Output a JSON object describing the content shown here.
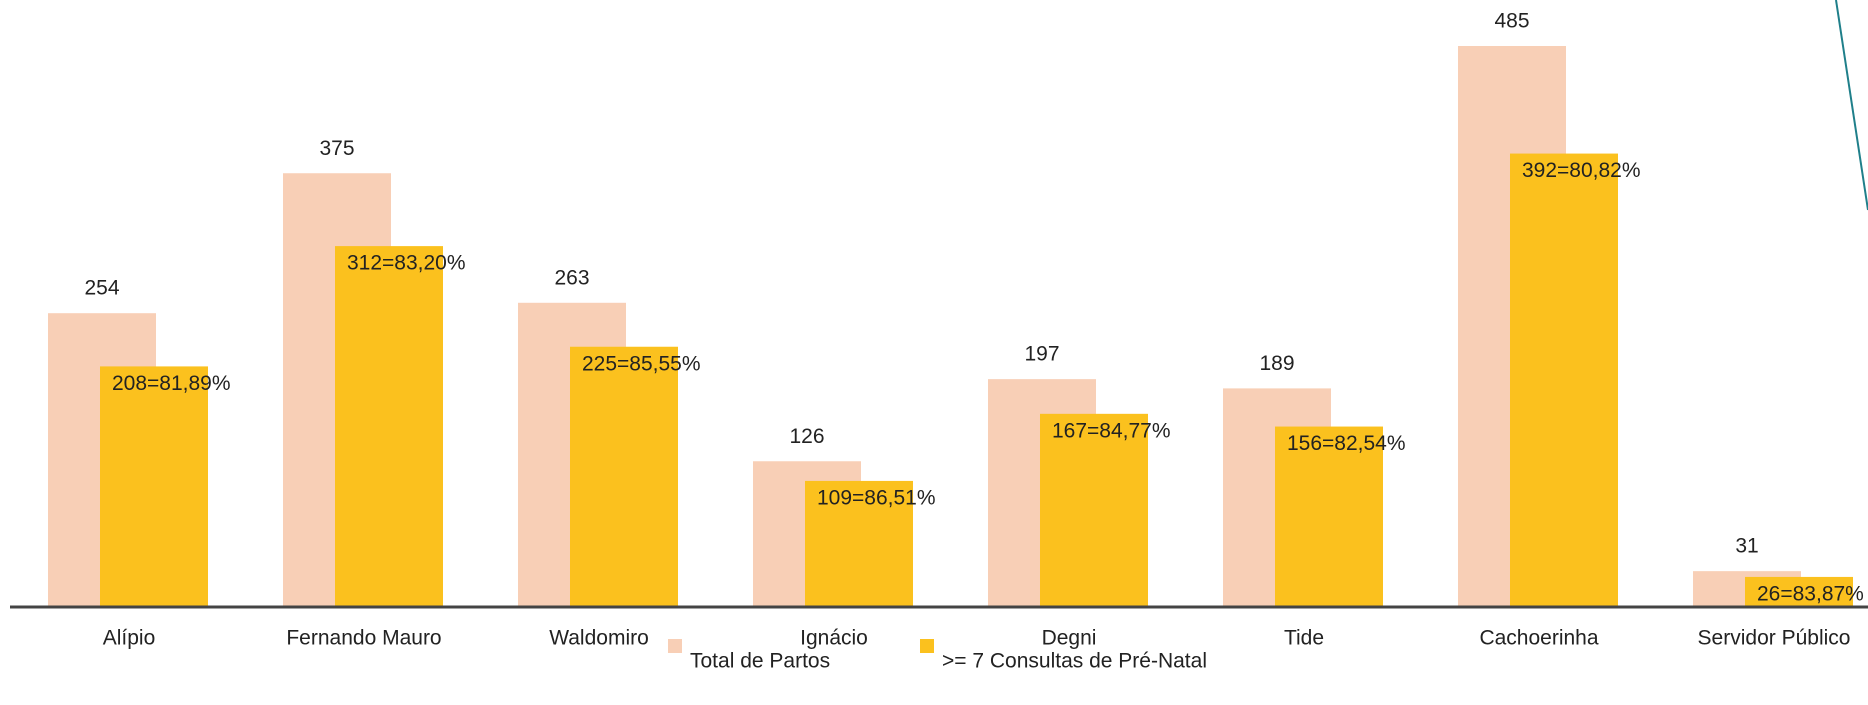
{
  "chart_data": {
    "type": "bar",
    "categories": [
      "Alípio",
      "Fernando Mauro",
      "Waldomiro",
      "Ignácio",
      "Degni",
      "Tide",
      "Cachoerinha",
      "Servidor Público"
    ],
    "series": [
      {
        "name": "Total de Partos",
        "color": "#f8cfb6",
        "values": [
          254,
          375,
          263,
          126,
          197,
          189,
          485,
          31
        ]
      },
      {
        "name": ">= 7 Consultas de Pré-Natal",
        "color": "#fbc11e",
        "values": [
          208,
          312,
          225,
          109,
          167,
          156,
          392,
          26
        ],
        "value_labels": [
          "208=81,89%",
          "312=83,20%",
          "225=85,55%",
          "109=86,51%",
          "167=84,77%",
          "156=82,54%",
          "392=80,82%",
          "26=83,87%"
        ]
      }
    ]
  }
}
